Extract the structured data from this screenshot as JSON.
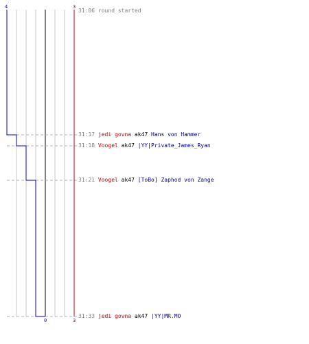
{
  "graph": {
    "team_blue_color": "#0000cc",
    "team_red_color": "#cc0000",
    "blue_score_start": "4",
    "red_score_start": "3",
    "blue_score_end": "0",
    "red_score_end": "3",
    "max_score": 4,
    "blue_remaining_steps": [
      {
        "time": "31:06",
        "value": 4
      },
      {
        "time": "31:17",
        "value": 3
      },
      {
        "time": "31:18",
        "value": 2
      },
      {
        "time": "31:21",
        "value": 1
      },
      {
        "time": "31:33",
        "value": 0
      }
    ]
  },
  "log": [
    {
      "time": "31:06",
      "text": "round started",
      "type": "event"
    },
    {
      "time": "31:17",
      "killer": "jedi govna",
      "killer_team": "red",
      "weapon": "ak47",
      "victim": "Hans von Hammer",
      "victim_team": "blue",
      "type": "kill"
    },
    {
      "time": "31:18",
      "killer": "Voogel",
      "killer_team": "red",
      "weapon": "ak47",
      "victim": "|YY|Private_James_Ryan",
      "victim_team": "blue",
      "type": "kill"
    },
    {
      "time": "31:21",
      "killer": "Voogel",
      "killer_team": "red",
      "weapon": "ak47",
      "victim": "[ToBo] Zaphod von Zange",
      "victim_team": "blue",
      "type": "kill"
    },
    {
      "time": "31:33",
      "killer": "jedi govna",
      "killer_team": "red",
      "weapon": "ak47",
      "victim": "|YY|MR.MO",
      "victim_team": "blue",
      "type": "kill"
    }
  ]
}
